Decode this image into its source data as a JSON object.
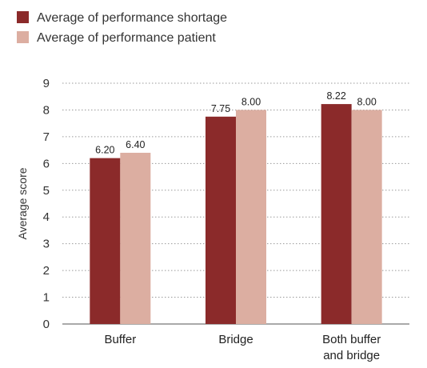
{
  "chart_data": {
    "type": "bar",
    "categories": [
      [
        "Buffer"
      ],
      [
        "Bridge"
      ],
      [
        "Both buffer",
        "and bridge"
      ]
    ],
    "series": [
      {
        "name": "Average of performance shortage",
        "color": "#8b2a2a",
        "values": [
          6.2,
          7.75,
          8.22
        ],
        "labels": [
          "6.20",
          "7.75",
          "8.22"
        ]
      },
      {
        "name": "Average of performance patient",
        "color": "#dcaea1",
        "values": [
          6.4,
          8.0,
          8.0
        ],
        "labels": [
          "6.40",
          "8.00",
          "8.00"
        ]
      }
    ],
    "ylabel": "Average score",
    "ylim": [
      0,
      9
    ],
    "yticks": [
      0,
      1,
      2,
      3,
      4,
      5,
      6,
      7,
      8,
      9
    ],
    "grid": "dotted horizontal",
    "legend_position": "top-left"
  }
}
